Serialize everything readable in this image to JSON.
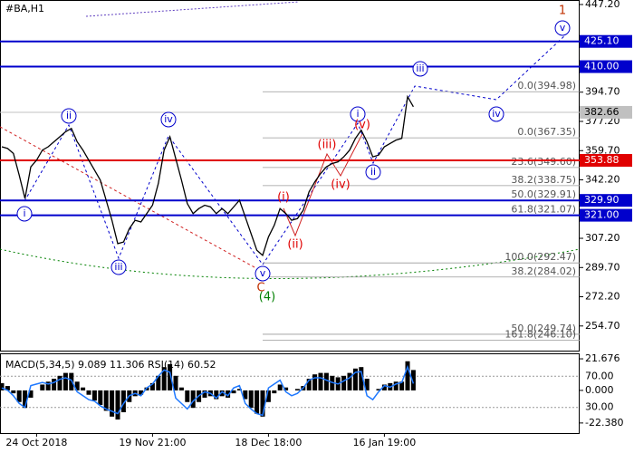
{
  "chart_data": {
    "type": "line",
    "title": "#BA,H1",
    "categories": [
      null,
      null,
      null,
      null,
      null,
      null,
      "24 Oct 2018",
      null,
      null,
      null,
      null,
      null,
      null,
      null,
      null,
      null,
      null,
      null,
      null,
      null,
      null,
      null,
      null,
      null,
      null,
      null,
      "19 Nov 21:00",
      null,
      null,
      null,
      null,
      null,
      null,
      null,
      null,
      null,
      null,
      null,
      null,
      null,
      null,
      null,
      null,
      null,
      null,
      null,
      "18 Dec 18:00",
      null,
      null,
      null,
      null,
      null,
      null,
      null,
      null,
      null,
      null,
      null,
      null,
      null,
      null,
      null,
      null,
      null,
      null,
      null,
      "16 Jan 19:00",
      null,
      null,
      null,
      null,
      null
    ],
    "series": [
      {
        "name": "#BA",
        "color": "#000000",
        "values": [
          362,
          361,
          358,
          345,
          331,
          350,
          354,
          360,
          362,
          365,
          368,
          371,
          373,
          365,
          360,
          354,
          348,
          342,
          330,
          318,
          304,
          305,
          313,
          318,
          317,
          322,
          327,
          340,
          360,
          368,
          355,
          342,
          328,
          322,
          325,
          327,
          326,
          322,
          325,
          322,
          326,
          330,
          320,
          310,
          300,
          297,
          308,
          315,
          325,
          322,
          318,
          319,
          324,
          335,
          341,
          346,
          350,
          352,
          353,
          356,
          360,
          367,
          372,
          365,
          356,
          357,
          362,
          364,
          366,
          367,
          392,
          386
        ]
      }
    ],
    "ylim": [
      239.4,
      449.9
    ],
    "yticks": [
      {
        "value": 447.2,
        "label": "447.20"
      },
      {
        "value": 394.7,
        "label": "394.70"
      },
      {
        "value": 377.2,
        "label": "377.20"
      },
      {
        "value": 359.7,
        "label": "359.70"
      },
      {
        "value": 342.2,
        "label": "342.20"
      },
      {
        "value": 307.2,
        "label": "307.20"
      },
      {
        "value": 289.7,
        "label": "289.70"
      },
      {
        "value": 272.2,
        "label": "272.20"
      },
      {
        "value": 254.7,
        "label": "254.70"
      }
    ],
    "levels": [
      {
        "value": 425.1,
        "label": "425.10",
        "color": "#0000cc"
      },
      {
        "value": 410.0,
        "label": "410.00",
        "color": "#0000cc"
      },
      {
        "value": 382.66,
        "label": "382.66",
        "color": "#c0c0c0"
      },
      {
        "value": 353.88,
        "label": "353.88",
        "color": "#e00000"
      },
      {
        "value": 329.9,
        "label": "329.90",
        "color": "#0000cc"
      },
      {
        "value": 321.0,
        "label": "321.00",
        "color": "#0000cc"
      }
    ],
    "fibo": [
      {
        "value": 394.98,
        "label": "0.0(394.98)"
      },
      {
        "value": 367.35,
        "label": "0.0(367.35)"
      },
      {
        "value": 349.6,
        "label": "23.6(349.60)"
      },
      {
        "value": 338.75,
        "label": "38.2(338.75)"
      },
      {
        "value": 329.91,
        "label": "50.0(329.91)"
      },
      {
        "value": 321.07,
        "label": "61.8(321.07)"
      },
      {
        "value": 292.47,
        "label": "100.0(292.47)"
      },
      {
        "value": 284.02,
        "label": "38.2(284.02)"
      },
      {
        "value": 249.74,
        "label": "50.0(249.74)"
      },
      {
        "value": 246.1,
        "label": "161.8(246.10)"
      }
    ],
    "annotations": [
      {
        "text": "i",
        "color": "#0000cc"
      },
      {
        "text": "ii",
        "color": "#0000cc"
      },
      {
        "text": "iii",
        "color": "#0000cc"
      },
      {
        "text": "iv",
        "color": "#0000cc"
      },
      {
        "text": "v",
        "color": "#0000cc"
      },
      {
        "text": "i",
        "color": "#0000cc"
      },
      {
        "text": "ii",
        "color": "#0000cc"
      },
      {
        "text": "iii",
        "color": "#0000cc"
      },
      {
        "text": "iv",
        "color": "#0000cc"
      },
      {
        "text": "v",
        "color": "#0000cc"
      },
      {
        "text": "(i)",
        "color": "#e00000"
      },
      {
        "text": "(ii)",
        "color": "#e00000"
      },
      {
        "text": "(iii)",
        "color": "#e00000"
      },
      {
        "text": "(iv)",
        "color": "#e00000"
      },
      {
        "text": "(v)",
        "color": "#e00000"
      },
      {
        "text": "1",
        "color": "#c03000"
      },
      {
        "text": "C",
        "color": "#c03000"
      },
      {
        "text": "(4)",
        "color": "#008000"
      }
    ],
    "indicator": {
      "header": "MACD(5,34,5) 9.089 11.306 RSI(14) 60.52",
      "macd": {
        "name": "MACD",
        "color": "#000000",
        "values": [
          5,
          3,
          -2,
          -8,
          -12,
          -5,
          0,
          4,
          6,
          8,
          10,
          12,
          12,
          6,
          2,
          -3,
          -7,
          -10,
          -14,
          -18,
          -20,
          -15,
          -8,
          -4,
          -3,
          2,
          5,
          10,
          16,
          18,
          10,
          2,
          -8,
          -12,
          -8,
          -5,
          -4,
          -6,
          -4,
          -5,
          -2,
          1,
          -6,
          -12,
          -16,
          -18,
          -8,
          -2,
          4,
          2,
          0,
          1,
          3,
          8,
          11,
          12,
          12,
          10,
          9,
          10,
          12,
          15,
          16,
          8,
          0,
          1,
          4,
          5,
          6,
          6,
          20,
          14
        ]
      },
      "rsi": {
        "name": "RSI",
        "color": "#1e78ff",
        "values": [
          55,
          52,
          45,
          35,
          30,
          58,
          60,
          62,
          60,
          62,
          66,
          68,
          65,
          50,
          45,
          40,
          38,
          32,
          28,
          25,
          22,
          35,
          45,
          48,
          45,
          55,
          60,
          70,
          78,
          75,
          42,
          35,
          28,
          38,
          45,
          50,
          48,
          42,
          50,
          45,
          55,
          58,
          35,
          28,
          22,
          20,
          55,
          60,
          65,
          50,
          45,
          48,
          55,
          65,
          68,
          68,
          65,
          62,
          60,
          64,
          68,
          75,
          76,
          45,
          40,
          50,
          58,
          56,
          60,
          62,
          82,
          60.52
        ]
      },
      "macd_lim": [
        -29.3,
        24.82
      ],
      "macd_ticks": [
        21.676,
        {
          "value": 0,
          "label": "0.000"
        },
        {
          "value": -22.38,
          "label": "-22.380"
        }
      ],
      "rsi_lim": [
        -2.9,
        98.2
      ],
      "rsi_ticks": [
        {
          "value": 70,
          "label": "70.00"
        },
        {
          "value": 30,
          "label": "30.00"
        }
      ]
    }
  }
}
